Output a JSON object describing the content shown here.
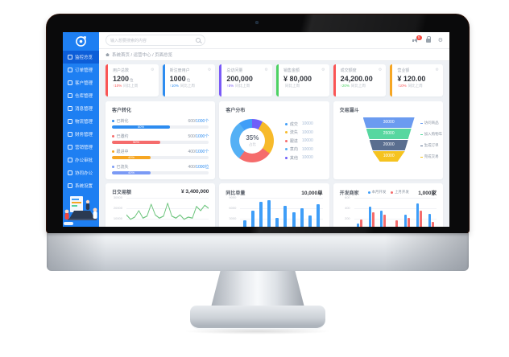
{
  "header": {
    "search_placeholder": "输入想要搜索的内容",
    "badge_count": "5",
    "gear_glyph": "⚙"
  },
  "breadcrumb": {
    "path": "系统首页 / 运营中心 / 页面总览"
  },
  "sidebar": {
    "items": [
      {
        "label": "监控总览",
        "icon": "home-icon",
        "active": true
      },
      {
        "label": "订单管理",
        "icon": "orders-icon",
        "active": false
      },
      {
        "label": "客户管理",
        "icon": "customers-icon",
        "active": false
      },
      {
        "label": "仓库管理",
        "icon": "warehouse-icon",
        "active": false
      },
      {
        "label": "消息管理",
        "icon": "messages-icon",
        "active": false
      },
      {
        "label": "物流管理",
        "icon": "logistics-icon",
        "active": false
      },
      {
        "label": "财务管理",
        "icon": "finance-icon",
        "active": false
      },
      {
        "label": "营销管理",
        "icon": "marketing-icon",
        "active": false
      },
      {
        "label": "办公审批",
        "icon": "approvals-icon",
        "active": false
      },
      {
        "label": "协同办公",
        "icon": "collaboration-icon",
        "active": false
      },
      {
        "label": "系统设置",
        "icon": "settings-icon",
        "active": false
      }
    ]
  },
  "kpis": [
    {
      "label": "用户总数",
      "value": "1200",
      "unit": "位",
      "delta": "↑10%",
      "suffix": "同比上周",
      "accent": "#fa5555",
      "delta_color": "#fa5555"
    },
    {
      "label": "新注册用户",
      "value": "1000",
      "unit": "位",
      "delta": "↑10%",
      "suffix": "同比上周",
      "accent": "#2d8cf0",
      "delta_color": "#2d8cf0"
    },
    {
      "label": "总访问量",
      "value": "200,000",
      "unit": "",
      "delta": "↑5%",
      "suffix": "同比上周",
      "accent": "#7a5af8",
      "delta_color": "#7a5af8"
    },
    {
      "label": "销售金额",
      "value": "¥ 80,000",
      "unit": "",
      "delta": "",
      "suffix": "同比上周",
      "accent": "#4cd263",
      "delta_color": "#4cd263"
    },
    {
      "label": "成交额度",
      "value": "24,200.00",
      "unit": "",
      "delta": "↑20%",
      "suffix": "同比上周",
      "accent": "#fa5555",
      "delta_color": "#4cd263"
    },
    {
      "label": "营业额",
      "value": "¥ 120.00",
      "unit": "",
      "delta": "↑10%",
      "suffix": "同比上周",
      "accent": "#f6a623",
      "delta_color": "#fa5555"
    }
  ],
  "panels": {
    "conversion": {
      "title": "客户转化",
      "rows": [
        {
          "label": "已转化",
          "num": "600/",
          "total": "1000个",
          "pct": 60,
          "pct_label": "60%",
          "color": "#2d8cf0"
        },
        {
          "label": "已邀约",
          "num": "500/",
          "total": "1000个",
          "pct": 50,
          "pct_label": "50%",
          "color": "#f56c6c"
        },
        {
          "label": "跟进中",
          "num": "400/",
          "total": "1000个",
          "pct": 40,
          "pct_label": "40%",
          "color": "#f6a623"
        },
        {
          "label": "已流失",
          "num": "400/",
          "total": "1000位",
          "pct": 40,
          "pct_label": "40%",
          "color": "#7b9af5"
        }
      ]
    },
    "distribution": {
      "title": "客户分布",
      "center_value": "35%",
      "center_label": "占比",
      "segments": [
        {
          "color": "#6f5ef9",
          "pct": 8
        },
        {
          "color": "#f7ba2a",
          "pct": 27
        },
        {
          "color": "#f56c6c",
          "pct": 25
        },
        {
          "color": "#54b0f5",
          "pct": 30
        },
        {
          "color": "#3f9ef8",
          "pct": 10
        }
      ],
      "legend": [
        {
          "label": "成交",
          "value": "10000",
          "color": "#3f9ef8"
        },
        {
          "label": "流失",
          "value": "10000",
          "color": "#f7ba2a"
        },
        {
          "label": "跟进",
          "value": "10000",
          "color": "#f56c6c"
        },
        {
          "label": "意向",
          "value": "10000",
          "color": "#54b0f5"
        },
        {
          "label": "其他",
          "value": "10000",
          "color": "#6f5ef9"
        }
      ]
    },
    "funnel": {
      "title": "交易漏斗",
      "stages": [
        {
          "value": "30000",
          "label": "访问商品",
          "color": "#6b9bf0"
        },
        {
          "value": "25000",
          "label": "加入购物车",
          "color": "#57d7a0"
        },
        {
          "value": "20000",
          "label": "生成订单",
          "color": "#5a6e8f"
        },
        {
          "value": "10000",
          "label": "完成交易",
          "color": "#f5c320"
        }
      ]
    },
    "daily": {
      "title": "日交易额",
      "total": "¥ 3,400,000",
      "yticks": [
        "30000",
        "20000",
        "10000"
      ],
      "ymax": 30000,
      "type": "line",
      "values": [
        14000,
        10000,
        12000,
        18000,
        11000,
        13000,
        24000,
        14000,
        11000,
        13000,
        25000,
        13000,
        11000,
        14000,
        10000,
        12000,
        11000,
        22000,
        18000,
        23000,
        20000
      ],
      "line_color": "#6ec57e"
    },
    "orders": {
      "title": "同比单量",
      "total": "10,000单",
      "yticks": [
        "9000",
        "6000",
        "3000"
      ],
      "ymax": 9000,
      "type": "bar",
      "values": [
        2800,
        5600,
        8400,
        8700,
        3600,
        7000,
        5200,
        6400,
        4200,
        7600
      ],
      "bar_color": "#3f9ef8"
    },
    "merchants": {
      "title": "开发商家",
      "total": "1,000家",
      "yticks": [
        "600",
        "400",
        "200"
      ],
      "ymax": 600,
      "type": "grouped-bar",
      "legend": [
        {
          "label": "本月开发",
          "color": "#3f9ef8"
        },
        {
          "label": "上月开发",
          "color": "#f56c6c"
        }
      ],
      "groups": [
        [
          120,
          210
        ],
        [
          460,
          350
        ],
        [
          380,
          300
        ],
        [
          70,
          190
        ],
        [
          300,
          230
        ],
        [
          520,
          380
        ],
        [
          310,
          160
        ]
      ]
    }
  }
}
